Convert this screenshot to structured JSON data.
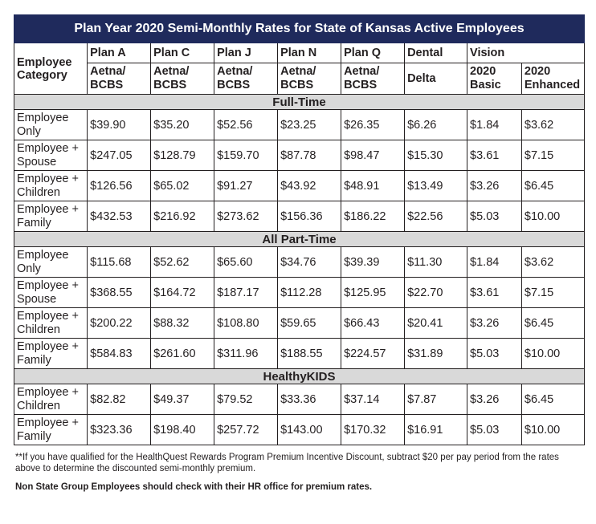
{
  "title": "Plan Year 2020 Semi-Monthly Rates for State of Kansas Active Employees",
  "header": {
    "employee_category": "Employee Category",
    "plans": [
      {
        "name": "Plan A",
        "sub": "Aetna/ BCBS"
      },
      {
        "name": "Plan C",
        "sub": "Aetna/ BCBS"
      },
      {
        "name": "Plan J",
        "sub": "Aetna/ BCBS"
      },
      {
        "name": "Plan N",
        "sub": "Aetna/ BCBS"
      },
      {
        "name": "Plan Q",
        "sub": "Aetna/ BCBS"
      }
    ],
    "dental": "Dental",
    "dental_sub": "Delta",
    "vision": "Vision",
    "vision_basic": "2020 Basic",
    "vision_enhanced": "2020 Enhanced"
  },
  "sections": [
    {
      "name": "Full-Time",
      "rows": [
        {
          "category": "Employee Only",
          "values": [
            "$39.90",
            "$35.20",
            "$52.56",
            "$23.25",
            "$26.35",
            "$6.26",
            "$1.84",
            "$3.62"
          ]
        },
        {
          "category": "Employee + Spouse",
          "values": [
            "$247.05",
            "$128.79",
            "$159.70",
            "$87.78",
            "$98.47",
            "$15.30",
            "$3.61",
            "$7.15"
          ]
        },
        {
          "category": "Employee + Children",
          "values": [
            "$126.56",
            "$65.02",
            "$91.27",
            "$43.92",
            "$48.91",
            "$13.49",
            "$3.26",
            "$6.45"
          ]
        },
        {
          "category": "Employee + Family",
          "values": [
            "$432.53",
            "$216.92",
            "$273.62",
            "$156.36",
            "$186.22",
            "$22.56",
            "$5.03",
            "$10.00"
          ]
        }
      ]
    },
    {
      "name": "All Part-Time",
      "rows": [
        {
          "category": "Employee Only",
          "values": [
            "$115.68",
            "$52.62",
            "$65.60",
            "$34.76",
            "$39.39",
            "$11.30",
            "$1.84",
            "$3.62"
          ]
        },
        {
          "category": "Employee + Spouse",
          "values": [
            "$368.55",
            "$164.72",
            "$187.17",
            "$112.28",
            "$125.95",
            "$22.70",
            "$3.61",
            "$7.15"
          ]
        },
        {
          "category": "Employee + Children",
          "values": [
            "$200.22",
            "$88.32",
            "$108.80",
            "$59.65",
            "$66.43",
            "$20.41",
            "$3.26",
            "$6.45"
          ]
        },
        {
          "category": "Employee + Family",
          "values": [
            "$584.83",
            "$261.60",
            "$311.96",
            "$188.55",
            "$224.57",
            "$31.89",
            "$5.03",
            "$10.00"
          ]
        }
      ]
    },
    {
      "name": "HealthyKIDS",
      "rows": [
        {
          "category": "Employee + Children",
          "values": [
            "$82.82",
            "$49.37",
            "$79.52",
            "$33.36",
            "$37.14",
            "$7.87",
            "$3.26",
            "$6.45"
          ]
        },
        {
          "category": "Employee + Family",
          "values": [
            "$323.36",
            "$198.40",
            "$257.72",
            "$143.00",
            "$170.32",
            "$16.91",
            "$5.03",
            "$10.00"
          ]
        }
      ]
    }
  ],
  "notes": {
    "discount": "**If you have qualified for the HealthQuest Rewards Program Premium Incentive Discount, subtract $20 per pay period from the rates above to determine the discounted semi-monthly premium.",
    "non_state": "Non State Group Employees should check with their HR office for premium rates."
  },
  "colors": {
    "title_bg": "#1f2a5c",
    "section_bg": "#d9d9d9"
  }
}
